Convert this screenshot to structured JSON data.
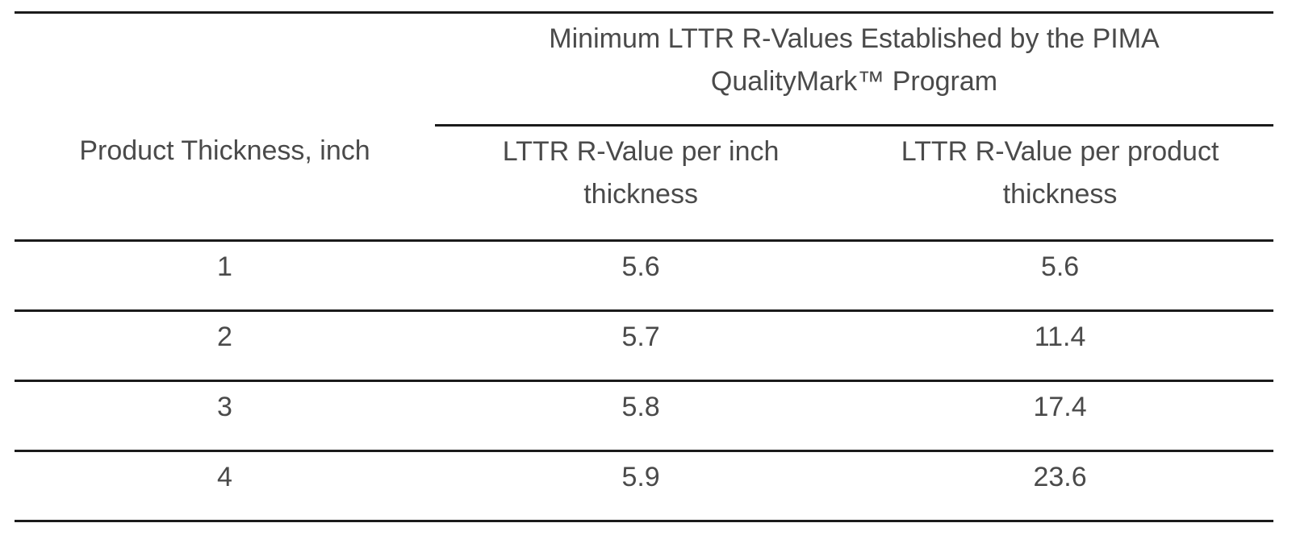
{
  "table": {
    "spanning_header": {
      "full": "Minimum LTTR R-Values Established by the PIMA QualityMark™ Program",
      "lines": [
        "Minimum LTTR R-Values Established by the PIMA",
        "QualityMark™ Program"
      ]
    },
    "columns": [
      {
        "label": "Product Thickness, inch",
        "lines": [
          "Product Thickness, inch"
        ]
      },
      {
        "label": "LTTR R-Value per inch thickness",
        "lines": [
          "LTTR R-Value per inch",
          "thickness"
        ]
      },
      {
        "label": "LTTR R-Value per product thickness",
        "lines": [
          "LTTR R-Value per product",
          "thickness"
        ]
      }
    ],
    "rows": [
      [
        "1",
        "5.6",
        "5.6"
      ],
      [
        "2",
        "5.7",
        "11.4"
      ],
      [
        "3",
        "5.8",
        "17.4"
      ],
      [
        "4",
        "5.9",
        "23.6"
      ]
    ]
  },
  "chart_data": {
    "type": "table",
    "title": "Minimum LTTR R-Values Established by the PIMA QualityMark™ Program",
    "columns": [
      "Product Thickness, inch",
      "LTTR R-Value per inch thickness",
      "LTTR R-Value per product thickness"
    ],
    "rows": [
      [
        1,
        5.6,
        5.6
      ],
      [
        2,
        5.7,
        11.4
      ],
      [
        3,
        5.8,
        17.4
      ],
      [
        4,
        5.9,
        23.6
      ]
    ]
  },
  "colors": {
    "text": "#4a4a4a",
    "rule": "#1b1b1b",
    "background": "#ffffff"
  }
}
